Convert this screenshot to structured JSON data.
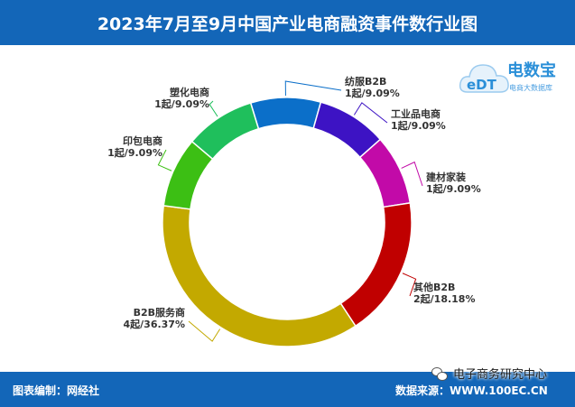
{
  "title": "2023年7月至9月中国产业电商融资事件数行业图",
  "footer": {
    "left": "图表编制：网经社",
    "right": "数据来源：WWW.100EC.CN"
  },
  "watermark": "电子商务研究中心",
  "logo": {
    "main": "电数宝",
    "sub": "电商大数据库",
    "letters": "eDT"
  },
  "colors": {
    "header": "#1366b8",
    "slices": [
      "#0b6fc9",
      "#3d13c4",
      "#c20aa8",
      "#c00000",
      "#c3a900",
      "#3cbf14",
      "#1fbf5c"
    ]
  },
  "chart_data": {
    "type": "pie",
    "style": "donut",
    "title": "2023年7月至9月中国产业电商融资事件数行业图",
    "slices": [
      {
        "name": "纺服B2B",
        "value": 1,
        "label": "1起/9.09%"
      },
      {
        "name": "工业品电商",
        "value": 1,
        "label": "1起/9.09%"
      },
      {
        "name": "建材家装",
        "value": 1,
        "label": "1起/9.09%"
      },
      {
        "name": "其他B2B",
        "value": 2,
        "label": "2起/18.18%"
      },
      {
        "name": "B2B服务商",
        "value": 4,
        "label": "4起/36.37%"
      },
      {
        "name": "印包电商",
        "value": 1,
        "label": "1起/9.09%"
      },
      {
        "name": "塑化电商",
        "value": 1,
        "label": "1起/9.09%"
      }
    ]
  }
}
